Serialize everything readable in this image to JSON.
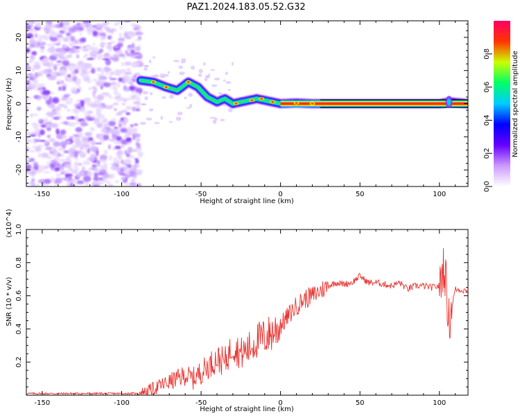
{
  "title": "PAZ1.2024.183.05.52.G32",
  "chart_data": [
    {
      "type": "heatmap",
      "title": "PAZ1.2024.183.05.52.G32",
      "xlabel": "Height of straight line (km)",
      "ylabel": "Frequency (Hz)",
      "xlim": [
        -160,
        118
      ],
      "ylim": [
        -25,
        25
      ],
      "x_ticks": [
        -150,
        -100,
        -50,
        0,
        50,
        100
      ],
      "y_ticks": [
        -20,
        -10,
        0,
        10,
        20
      ],
      "colorbar": {
        "label": "Normalized spectral amplitude",
        "range": [
          0.0,
          1.0
        ],
        "ticks": [
          "0.0",
          "0.2",
          "0.4",
          "0.6",
          "0.8"
        ],
        "colors": [
          "#ffffff",
          "#cc99ff",
          "#6600ff",
          "#0000ff",
          "#00ccff",
          "#00ff66",
          "#ccff00",
          "#ff3300",
          "#ff0066"
        ]
      },
      "ridge": {
        "x": [
          -88,
          -80,
          -72,
          -65,
          -58,
          -52,
          -46,
          -40,
          -35,
          -30,
          -25,
          -20,
          -15,
          -10,
          -5,
          0,
          10,
          20,
          30,
          60,
          100,
          107,
          118
        ],
        "y": [
          7,
          6.5,
          5,
          4,
          6.5,
          5,
          2,
          0.5,
          1.5,
          0,
          0.5,
          1,
          1.5,
          1,
          0.5,
          0,
          0.2,
          0,
          0,
          0,
          0,
          0.5,
          0
        ]
      },
      "grid": false
    },
    {
      "type": "line",
      "xlabel": "Height of straight line (km)",
      "ylabel": "SNR (10 * v/v)",
      "y_multiplier": "(x10^4)",
      "xlim": [
        -160,
        118
      ],
      "ylim": [
        0,
        1.0
      ],
      "x_ticks": [
        -150,
        -100,
        -50,
        0,
        50,
        100
      ],
      "y_ticks": [
        0.2,
        0.4,
        0.6,
        0.8,
        1.0
      ],
      "series": [
        {
          "color": "#e8312d",
          "x": [
            -160,
            -140,
            -120,
            -100,
            -90,
            -85,
            -80,
            -75,
            -70,
            -65,
            -60,
            -55,
            -50,
            -45,
            -40,
            -35,
            -30,
            -25,
            -20,
            -15,
            -10,
            -5,
            0,
            5,
            10,
            15,
            20,
            25,
            30,
            35,
            40,
            45,
            50,
            55,
            60,
            65,
            70,
            75,
            80,
            85,
            90,
            95,
            100,
            103,
            106,
            110,
            118
          ],
          "y": [
            0.01,
            0.01,
            0.01,
            0.01,
            0.01,
            0.02,
            0.04,
            0.06,
            0.08,
            0.1,
            0.12,
            0.1,
            0.14,
            0.18,
            0.22,
            0.2,
            0.3,
            0.25,
            0.28,
            0.33,
            0.35,
            0.38,
            0.42,
            0.48,
            0.54,
            0.58,
            0.6,
            0.63,
            0.66,
            0.68,
            0.67,
            0.68,
            0.72,
            0.68,
            0.68,
            0.67,
            0.66,
            0.68,
            0.64,
            0.66,
            0.66,
            0.65,
            0.66,
            0.8,
            0.45,
            0.64,
            0.63
          ]
        }
      ],
      "grid": false
    }
  ]
}
